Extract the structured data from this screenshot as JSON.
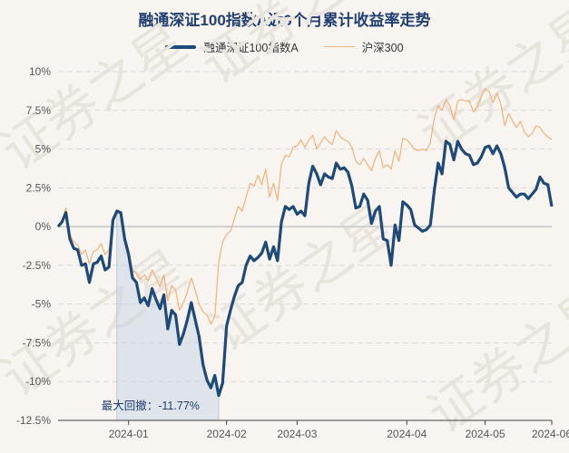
{
  "watermark": "证券之星",
  "chart_data": {
    "type": "line",
    "title": "融通深证100指数A近6个月累计收益率走势",
    "ylim": [
      -12.5,
      10
    ],
    "yticks": [
      10,
      7.5,
      5,
      2.5,
      0,
      -2.5,
      -5,
      -7.5,
      -10,
      -12.5
    ],
    "ytick_labels": [
      "10%",
      "7.5%",
      "5%",
      "2.5%",
      "0%",
      "-2.5%",
      "-5%",
      "-7.5%",
      "-10%",
      "-12.5%"
    ],
    "xticks": [
      "2024-01",
      "2024-02",
      "2024-03",
      "2024-04",
      "2024-05",
      "2024-06"
    ],
    "grid": "horizontal dashed",
    "legend_position": "top",
    "annotation": {
      "label": "最大回撤：-11.77%",
      "value": -11.77
    },
    "series": [
      {
        "name": "融通深证100指数A",
        "color": "#1d4a7a",
        "values": [
          0.0,
          0.3,
          0.9,
          -0.8,
          -1.4,
          -1.5,
          -2.5,
          -2.4,
          -3.6,
          -2.4,
          -2.3,
          -1.9,
          -2.8,
          -2.6,
          0.4,
          1.0,
          0.9,
          -0.8,
          -1.8,
          -3.3,
          -3.6,
          -4.9,
          -4.6,
          -5.1,
          -4.0,
          -4.7,
          -5.3,
          -4.4,
          -6.6,
          -5.4,
          -5.7,
          -7.6,
          -6.9,
          -6.0,
          -4.9,
          -6.0,
          -7.1,
          -8.9,
          -9.9,
          -10.4,
          -9.6,
          -10.9,
          -10.1,
          -6.4,
          -5.4,
          -4.5,
          -3.8,
          -3.6,
          -2.5,
          -1.9,
          -2.2,
          -2.0,
          -1.7,
          -1.0,
          -2.1,
          -1.3,
          -2.2,
          0.3,
          1.3,
          1.1,
          1.3,
          0.8,
          1.0,
          0.7,
          2.8,
          3.9,
          3.4,
          2.7,
          3.4,
          3.2,
          3.1,
          4.1,
          3.7,
          3.8,
          3.5,
          2.6,
          1.2,
          1.3,
          2.1,
          1.7,
          0.2,
          1.0,
          1.3,
          -0.8,
          -0.9,
          -2.5,
          0.1,
          -0.9,
          1.6,
          1.4,
          1.1,
          0.1,
          -0.1,
          -0.3,
          -0.2,
          0.1,
          2.3,
          4.1,
          3.4,
          5.5,
          5.3,
          4.3,
          5.5,
          5.0,
          4.7,
          4.6,
          4.0,
          4.1,
          4.5,
          5.1,
          5.2,
          4.7,
          5.2,
          4.7,
          3.8,
          2.5,
          2.2,
          1.9,
          2.1,
          2.1,
          1.8,
          2.1,
          2.4,
          3.2,
          2.8,
          2.7,
          1.3
        ]
      },
      {
        "name": "沪深300",
        "color": "#f0b27a",
        "values": [
          0.0,
          0.4,
          1.2,
          -0.5,
          -1.0,
          -1.2,
          -1.8,
          -1.5,
          -2.4,
          -1.6,
          -1.5,
          -1.1,
          -1.8,
          -1.5,
          0.6,
          1.1,
          0.8,
          -0.6,
          -1.5,
          -2.8,
          -3.0,
          -3.4,
          -3.1,
          -3.5,
          -2.8,
          -3.3,
          -3.9,
          -3.1,
          -4.8,
          -3.8,
          -4.1,
          -5.4,
          -4.9,
          -4.2,
          -3.3,
          -4.1,
          -5.0,
          -5.5,
          -5.7,
          -6.3,
          -5.8,
          -2.3,
          -1.0,
          -0.5,
          -0.3,
          0.5,
          1.3,
          1.0,
          1.9,
          2.8,
          2.6,
          3.3,
          2.7,
          3.7,
          1.9,
          2.8,
          1.7,
          4.0,
          4.6,
          4.5,
          5.1,
          5.2,
          5.6,
          5.1,
          5.6,
          5.9,
          5.0,
          5.4,
          5.8,
          5.5,
          5.3,
          6.2,
          5.8,
          5.6,
          5.5,
          5.1,
          4.2,
          4.0,
          4.4,
          4.0,
          3.6,
          4.4,
          4.9,
          3.8,
          4.0,
          3.7,
          4.9,
          4.2,
          5.7,
          5.6,
          5.3,
          5.0,
          4.9,
          5.0,
          4.9,
          5.4,
          7.0,
          7.8,
          7.5,
          8.2,
          7.8,
          6.9,
          8.1,
          8.2,
          8.1,
          8.1,
          7.4,
          7.7,
          8.4,
          8.9,
          8.7,
          8.0,
          8.6,
          7.9,
          6.5,
          7.3,
          6.8,
          6.4,
          6.8,
          6.1,
          5.8,
          6.0,
          6.5,
          6.4,
          6.0,
          5.8,
          5.6
        ]
      }
    ]
  }
}
